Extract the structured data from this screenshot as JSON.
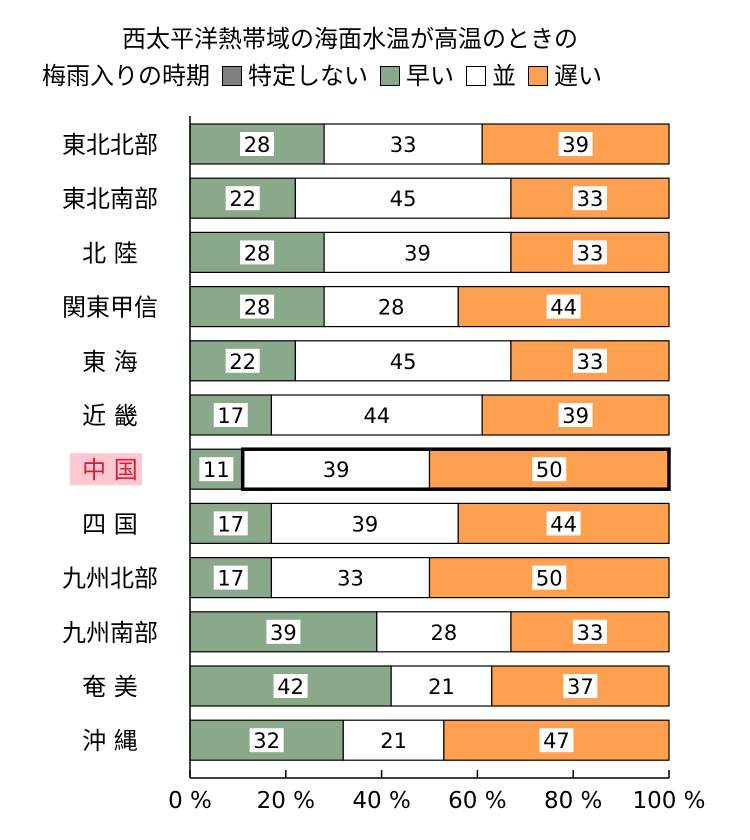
{
  "title_line1": "西太平洋熱帯域の海面水温が高温のときの",
  "title_line2": "梅雨入りの時期",
  "legend": [
    {
      "label": "特定しない",
      "color": "#808080"
    },
    {
      "label": "早い",
      "color": "#8aa88a"
    },
    {
      "label": "並",
      "color": "#ffffff"
    },
    {
      "label": "遅い",
      "color": "#ff9f50"
    }
  ],
  "colors": {
    "early": "#8aa88a",
    "normal": "#ffffff",
    "late": "#ff9f50",
    "highlight_bg": "#ffc8d0"
  },
  "chart_data": {
    "type": "bar",
    "orientation": "horizontal",
    "stacked": true,
    "categories": [
      "東北北部",
      "東北南部",
      "北 陸",
      "関東甲信",
      "東 海",
      "近 畿",
      "中 国",
      "四 国",
      "九州北部",
      "九州南部",
      "奄 美",
      "沖 縄"
    ],
    "highlighted_category": "中 国",
    "series": [
      {
        "name": "早い",
        "values": [
          28,
          22,
          28,
          28,
          22,
          17,
          11,
          17,
          17,
          39,
          42,
          32
        ]
      },
      {
        "name": "並",
        "values": [
          33,
          45,
          39,
          28,
          45,
          44,
          39,
          39,
          33,
          28,
          21,
          21
        ]
      },
      {
        "name": "遅い",
        "values": [
          39,
          33,
          33,
          44,
          33,
          39,
          50,
          44,
          50,
          33,
          37,
          47
        ]
      }
    ],
    "xlim": [
      0,
      100
    ],
    "xticks": [
      0,
      20,
      40,
      60,
      80,
      100
    ],
    "xtick_labels": [
      "0 %",
      "20 %",
      "40 %",
      "60 %",
      "80 %",
      "100 %"
    ],
    "grid": false,
    "legend_position": "top"
  }
}
